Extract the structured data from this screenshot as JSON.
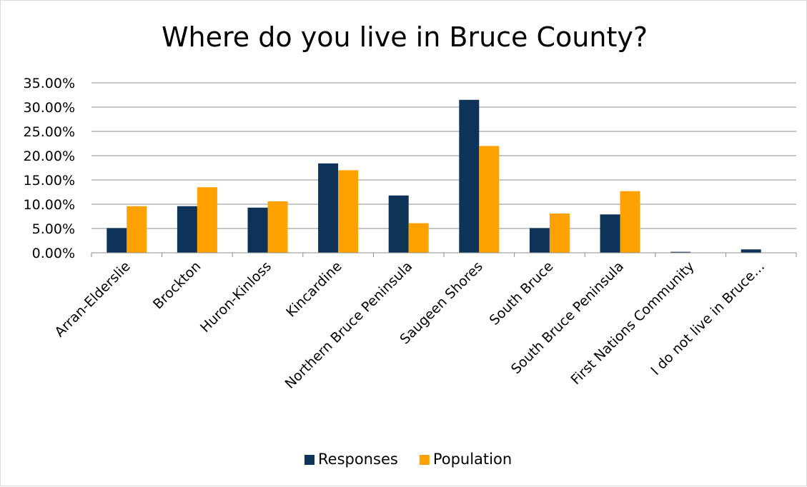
{
  "chart_data": {
    "type": "bar",
    "title": "Where do you live in Bruce County?",
    "xlabel": "",
    "ylabel": "",
    "categories": [
      "Arran-Elderslie",
      "Brockton",
      "Huron-Kinloss",
      "Kincardine",
      "Northern Bruce Peninsula",
      "Saugeen Shores",
      "South Bruce",
      "South Bruce Peninsula",
      "First Nations Community",
      "I do not live in Bruce…"
    ],
    "series": [
      {
        "name": "Responses",
        "color": "#0e3358",
        "values": [
          5.1,
          9.6,
          9.3,
          18.4,
          11.8,
          31.5,
          5.1,
          7.9,
          0.2,
          0.7
        ]
      },
      {
        "name": "Population",
        "color": "#ffa200",
        "values": [
          9.6,
          13.5,
          10.6,
          17.0,
          6.1,
          22.0,
          8.1,
          12.7,
          0.0,
          0.0
        ]
      }
    ],
    "ylim": [
      0,
      35
    ],
    "y_ticks": [
      0,
      5,
      10,
      15,
      20,
      25,
      30,
      35
    ],
    "y_tick_labels": [
      "0.00%",
      "5.00%",
      "10.00%",
      "15.00%",
      "20.00%",
      "25.00%",
      "30.00%",
      "35.00%"
    ],
    "grid": true,
    "legend_position": "bottom"
  }
}
